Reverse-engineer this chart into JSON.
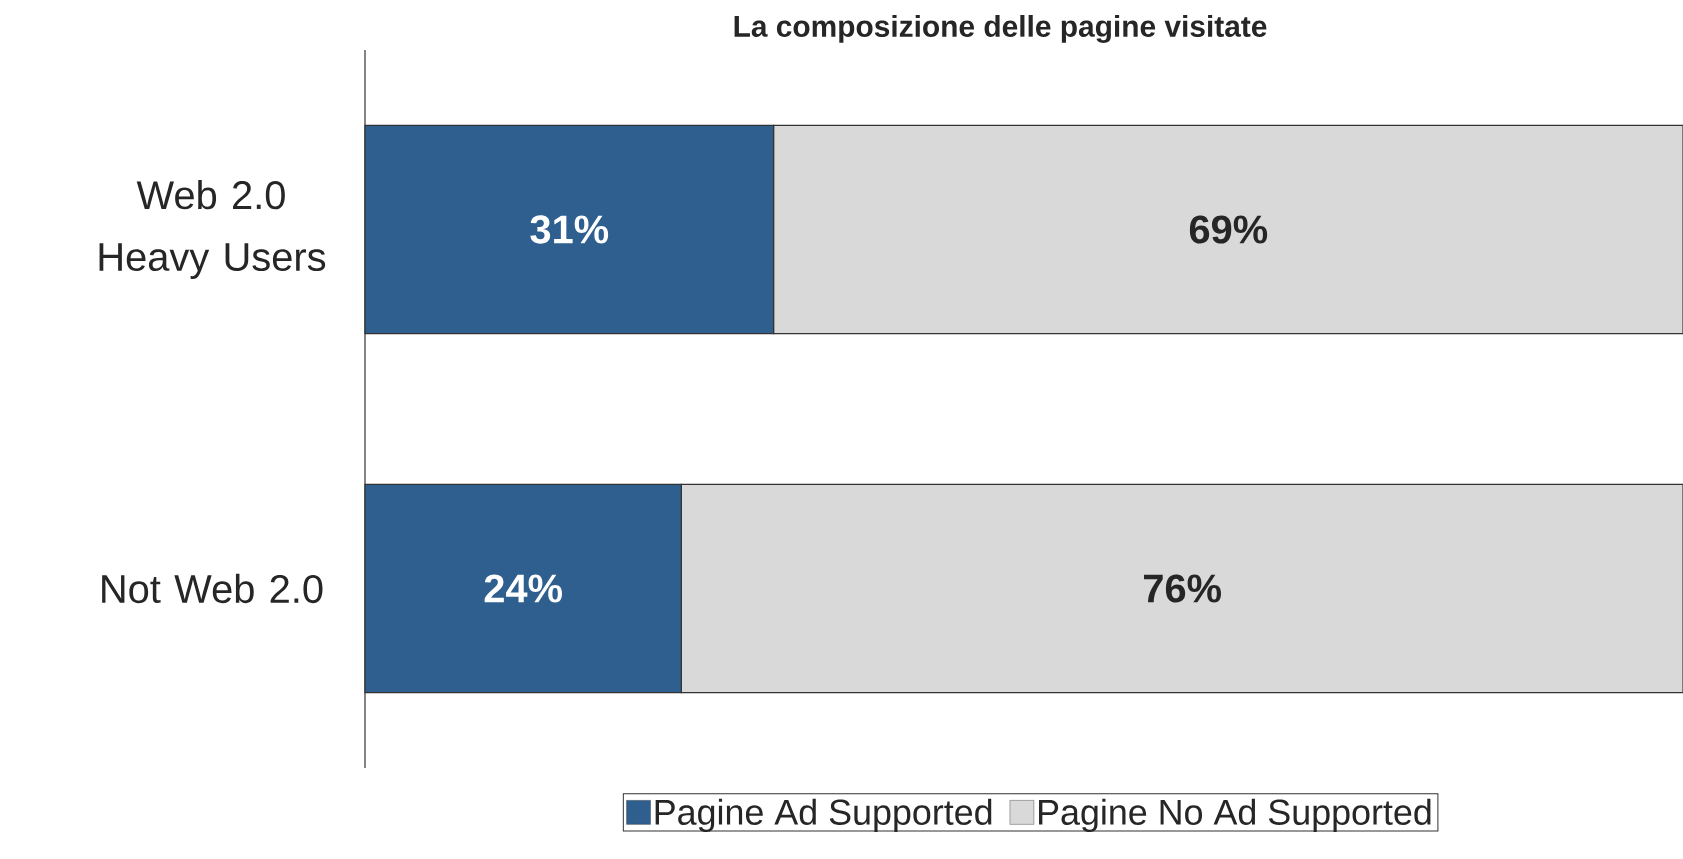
{
  "chart_data": {
    "type": "bar",
    "orientation": "horizontal",
    "stacked": true,
    "title": "La composizione delle pagine visitate",
    "categories": [
      "Web 2.0 Heavy Users",
      "Not Web 2.0"
    ],
    "series": [
      {
        "name": "Pagine Ad Supported",
        "color": "#2f5f8f",
        "values": [
          31,
          24
        ],
        "value_labels": [
          "31%",
          "24%"
        ]
      },
      {
        "name": "Pagine No Ad Supported",
        "color": "#d9d9d9",
        "values": [
          69,
          76
        ],
        "value_labels": [
          "69%",
          "76%"
        ]
      }
    ],
    "legend": "bottom"
  }
}
